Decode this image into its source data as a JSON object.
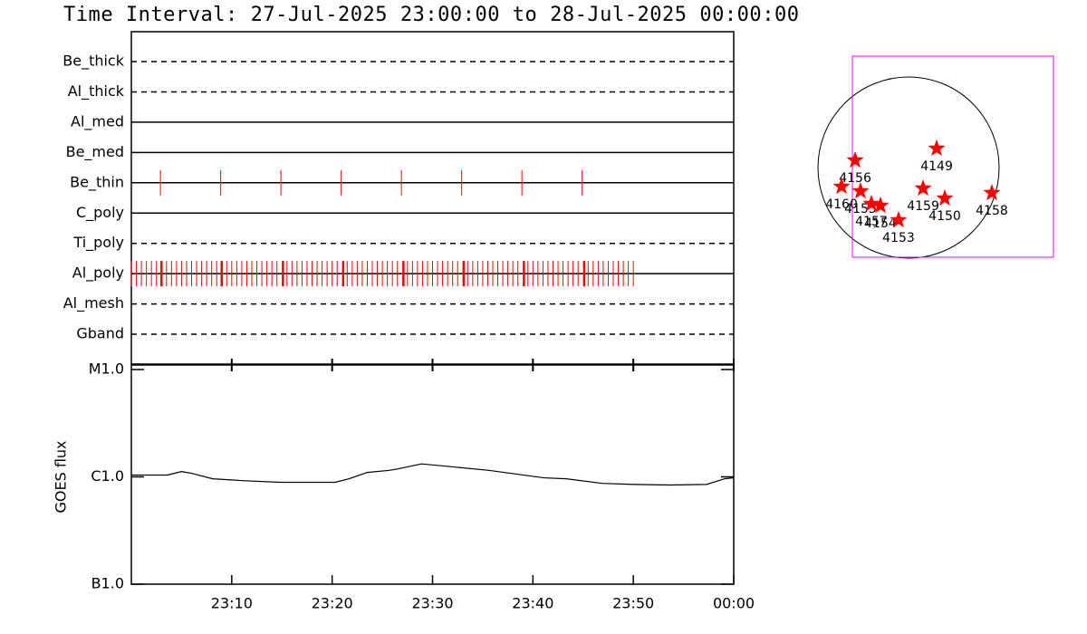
{
  "title": "Time Interval: 27-Jul-2025 23:00:00 to 28-Jul-2025 00:00:00",
  "chart_data": [
    {
      "type": "timeline",
      "color": "#ff0000",
      "xlim": [
        0,
        60
      ],
      "rows": [
        {
          "name": "Be_thick",
          "style": "dashed",
          "events": [],
          "major_events": []
        },
        {
          "name": "Al_thick",
          "style": "dashed",
          "events": [],
          "major_events": []
        },
        {
          "name": "Al_med",
          "style": "solid",
          "events": [],
          "major_events": []
        },
        {
          "name": "Be_med",
          "style": "solid",
          "events": [],
          "major_events": []
        },
        {
          "name": "Be_thin",
          "style": "solid",
          "events": [
            2.9,
            8.9,
            14.9,
            20.9,
            26.9,
            32.9,
            38.9,
            44.9
          ],
          "major_events": []
        },
        {
          "name": "C_poly",
          "style": "solid",
          "events": [],
          "major_events": []
        },
        {
          "name": "Ti_poly",
          "style": "dashed",
          "events": [],
          "major_events": []
        },
        {
          "name": "Al_poly",
          "style": "solid",
          "events": [
            0,
            0.5,
            1,
            1.5,
            2,
            2.5,
            3.5,
            4,
            4.5,
            5,
            5.5,
            6,
            6.5,
            7,
            7.5,
            8,
            8.5,
            9.5,
            10,
            10.5,
            11,
            11.5,
            12,
            12.5,
            13,
            13.5,
            14,
            14.5,
            15.5,
            16,
            16.5,
            17,
            17.5,
            18,
            18.5,
            19,
            19.5,
            20,
            20.5,
            21.5,
            22,
            22.5,
            23,
            23.5,
            24,
            24.5,
            25,
            25.5,
            26,
            26.5,
            27.5,
            28,
            28.5,
            29,
            29.5,
            30,
            30.5,
            31,
            31.5,
            32,
            32.5,
            33.5,
            34,
            34.5,
            35,
            35.5,
            36,
            36.5,
            37,
            37.5,
            38,
            38.5,
            39.5,
            40,
            40.5,
            41,
            41.5,
            42,
            42.5,
            43,
            43.5,
            44,
            44.5,
            45.5,
            46,
            46.5,
            47,
            47.5,
            48,
            48.5,
            49,
            49.5,
            50
          ],
          "major_events": [
            3,
            9,
            15.1,
            21.1,
            27.1,
            33.1,
            39.1,
            45.1
          ]
        },
        {
          "name": "Al_mesh",
          "style": "dashed",
          "events": [],
          "major_events": []
        },
        {
          "name": "Gband",
          "style": "dashed",
          "events": [],
          "major_events": []
        }
      ]
    },
    {
      "type": "line",
      "ylabel": "GOES flux",
      "log_scale": true,
      "color": "#000000",
      "xlim": [
        0,
        60
      ],
      "xticks": [
        {
          "value": 10,
          "label": "23:10"
        },
        {
          "value": 20,
          "label": "23:20"
        },
        {
          "value": 30,
          "label": "23:30"
        },
        {
          "value": 40,
          "label": "23:40"
        },
        {
          "value": 50,
          "label": "23:50"
        },
        {
          "value": 60,
          "label": "00:00"
        }
      ],
      "ylim": [
        1e-07,
        1e-05
      ],
      "yticks": [
        {
          "value": 1e-07,
          "label": "B1.0"
        },
        {
          "value": 1e-06,
          "label": "C1.0"
        },
        {
          "value": 1e-05,
          "label": "M1.0"
        }
      ],
      "x": [
        0,
        1.4,
        3.6,
        5,
        6,
        8.1,
        11.3,
        14.9,
        20.3,
        21.7,
        23.5,
        25.7,
        26.6,
        28.9,
        32,
        35.6,
        41.1,
        43.3,
        46.9,
        50.1,
        53.7,
        57.3,
        59.1,
        60
      ],
      "values": [
        1.04e-06,
        1.04e-06,
        1.04e-06,
        1.12e-06,
        1.08e-06,
        9.6e-07,
        9.2e-07,
        8.9e-07,
        8.9e-07,
        9.6e-07,
        1.1e-06,
        1.15e-06,
        1.19e-06,
        1.32e-06,
        1.24e-06,
        1.15e-06,
        9.8e-07,
        9.6e-07,
        8.7e-07,
        8.5e-07,
        8.4e-07,
        8.5e-07,
        9.6e-07,
        9.8e-07
      ]
    },
    {
      "type": "scatter",
      "color": "#ff0000",
      "label_color": "#000000",
      "xlim": [
        -1104,
        1776
      ],
      "ylim": [
        -1152,
        1152
      ],
      "categories": [
        "4156",
        "4149",
        "4160",
        "4155",
        "4157",
        "4154",
        "4159",
        "4150",
        "4153",
        "4158"
      ],
      "x": [
        -566,
        298,
        -710,
        -509,
        -394,
        -298,
        154,
        384,
        -106,
        883
      ],
      "values": [
        77,
        202,
        -202,
        -250,
        -384,
        -403,
        -221,
        -326,
        -557,
        -269
      ],
      "fov": {
        "x": [
          -595,
          1536
        ],
        "y": [
          -950,
          1181
        ],
        "color": "#ff00ff"
      }
    }
  ]
}
